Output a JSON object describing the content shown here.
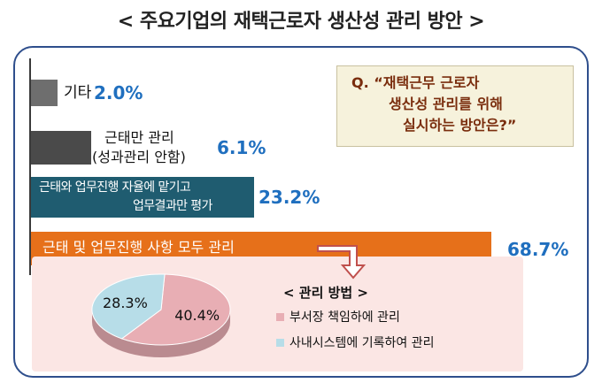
{
  "title": "< 주요기업의 재택근로자 생산성 관리 방안 >",
  "question": {
    "line1": "Q. “재택근무 근로자",
    "line2": "생산성 관리를 위해",
    "line3": "실시하는 방안은?”"
  },
  "chart_data": [
    {
      "type": "bar",
      "orientation": "horizontal",
      "categories": [
        "기타",
        "근태만 관리 (성과관리 안함)",
        "근태와 업무진행 자율에 맡기고 업무결과만 평가",
        "근태 및 업무진행 사항 모두 관리"
      ],
      "category_lines": [
        [
          "기타"
        ],
        [
          "근태만 관리",
          "(성과관리 안함)"
        ],
        [
          "근태와 업무진행 자율에 맡기고",
          "업무결과만 평가"
        ],
        [
          "근태 및 업무진행 사항 모두 관리"
        ]
      ],
      "values": [
        2.0,
        6.1,
        23.2,
        68.7
      ],
      "value_labels": [
        "2.0%",
        "6.1%",
        "23.2%",
        "68.7%"
      ],
      "colors": [
        "#6e6e6e",
        "#4a4a4a",
        "#1f5c70",
        "#e6701a"
      ]
    },
    {
      "type": "pie",
      "title": "< 관리 방법 >",
      "labels": [
        "부서장 책임하에 관리",
        "사내시스템에 기록하여 관리"
      ],
      "values": [
        40.4,
        28.3
      ],
      "value_labels": [
        "40.4%",
        "28.3%"
      ],
      "colors": [
        "#e8aeb4",
        "#b7dde8"
      ]
    }
  ]
}
